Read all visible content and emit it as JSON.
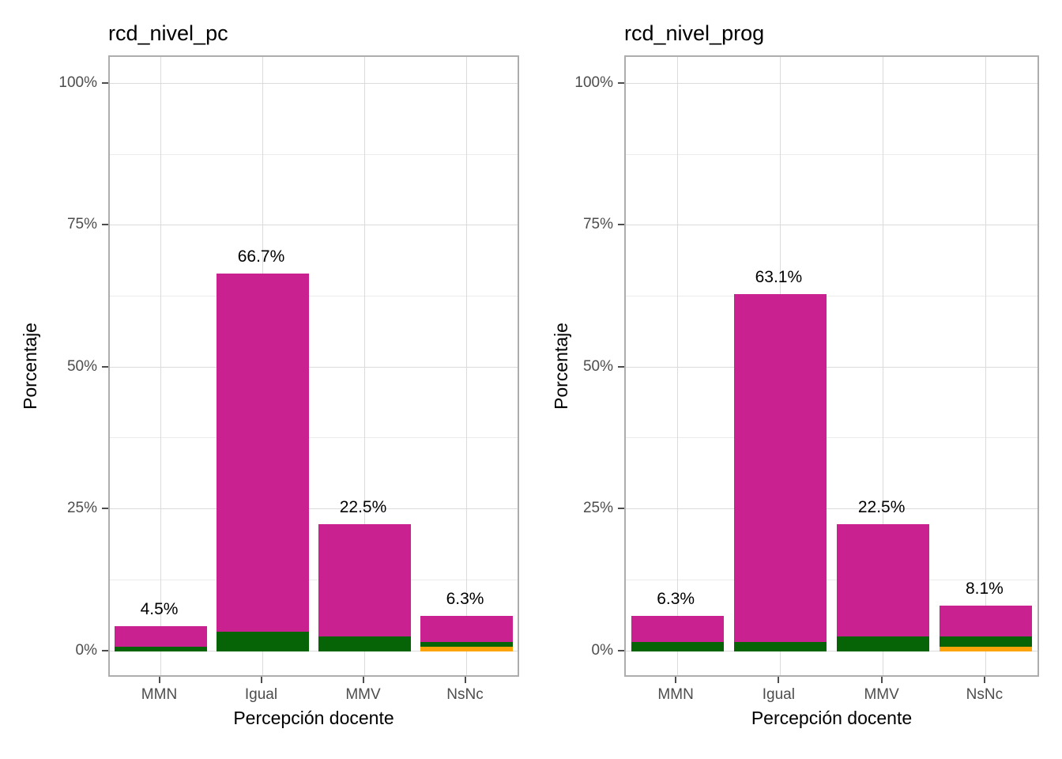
{
  "figure": {
    "background": "#ffffff",
    "colors": {
      "magenta": "#ca2191",
      "green": "#066306",
      "orange": "#fba40b",
      "grid_major": "#dbdbdb",
      "grid_minor": "#ebebeb",
      "panel_border": "#adadad",
      "tick_text": "#4d4d4d",
      "text": "#000000"
    }
  },
  "chart_data": [
    {
      "type": "bar",
      "title": "rcd_nivel_pc",
      "xlabel": "Percepción docente",
      "ylabel": "Porcentaje",
      "ylim": [
        0,
        100
      ],
      "grid": true,
      "legend": "none",
      "categories": [
        "MMN",
        "Igual",
        "MMV",
        "NsNc"
      ],
      "totals": [
        4.5,
        66.7,
        22.5,
        6.3
      ],
      "bar_labels": [
        "4.5%",
        "66.7%",
        "22.5%",
        "6.3%"
      ],
      "series": [
        {
          "name": "segment-orange",
          "color": "orange",
          "values": [
            0,
            0,
            0,
            0.9
          ]
        },
        {
          "name": "segment-green",
          "color": "green",
          "values": [
            0.9,
            3.6,
            2.7,
            0.9
          ]
        },
        {
          "name": "segment-magenta",
          "color": "magenta",
          "values": [
            3.6,
            63.1,
            19.8,
            4.5
          ]
        }
      ],
      "yticks": [
        {
          "value": 0,
          "label": "0%"
        },
        {
          "value": 25,
          "label": "25%"
        },
        {
          "value": 50,
          "label": "50%"
        },
        {
          "value": 75,
          "label": "75%"
        },
        {
          "value": 100,
          "label": "100%"
        }
      ],
      "minor_gridlines": [
        12.5,
        37.5,
        62.5,
        87.5
      ]
    },
    {
      "type": "bar",
      "title": "rcd_nivel_prog",
      "xlabel": "Percepción docente",
      "ylabel": "Porcentaje",
      "ylim": [
        0,
        100
      ],
      "grid": true,
      "legend": "none",
      "categories": [
        "MMN",
        "Igual",
        "MMV",
        "NsNc"
      ],
      "totals": [
        6.3,
        63.1,
        22.5,
        8.1
      ],
      "bar_labels": [
        "6.3%",
        "63.1%",
        "22.5%",
        "8.1%"
      ],
      "series": [
        {
          "name": "segment-orange",
          "color": "orange",
          "values": [
            0,
            0,
            0,
            0.9
          ]
        },
        {
          "name": "segment-green",
          "color": "green",
          "values": [
            1.8,
            1.8,
            2.7,
            1.8
          ]
        },
        {
          "name": "segment-magenta",
          "color": "magenta",
          "values": [
            4.5,
            61.3,
            19.8,
            5.4
          ]
        }
      ],
      "yticks": [
        {
          "value": 0,
          "label": "0%"
        },
        {
          "value": 25,
          "label": "25%"
        },
        {
          "value": 50,
          "label": "50%"
        },
        {
          "value": 75,
          "label": "75%"
        },
        {
          "value": 100,
          "label": "100%"
        }
      ],
      "minor_gridlines": [
        12.5,
        37.5,
        62.5,
        87.5
      ]
    }
  ]
}
